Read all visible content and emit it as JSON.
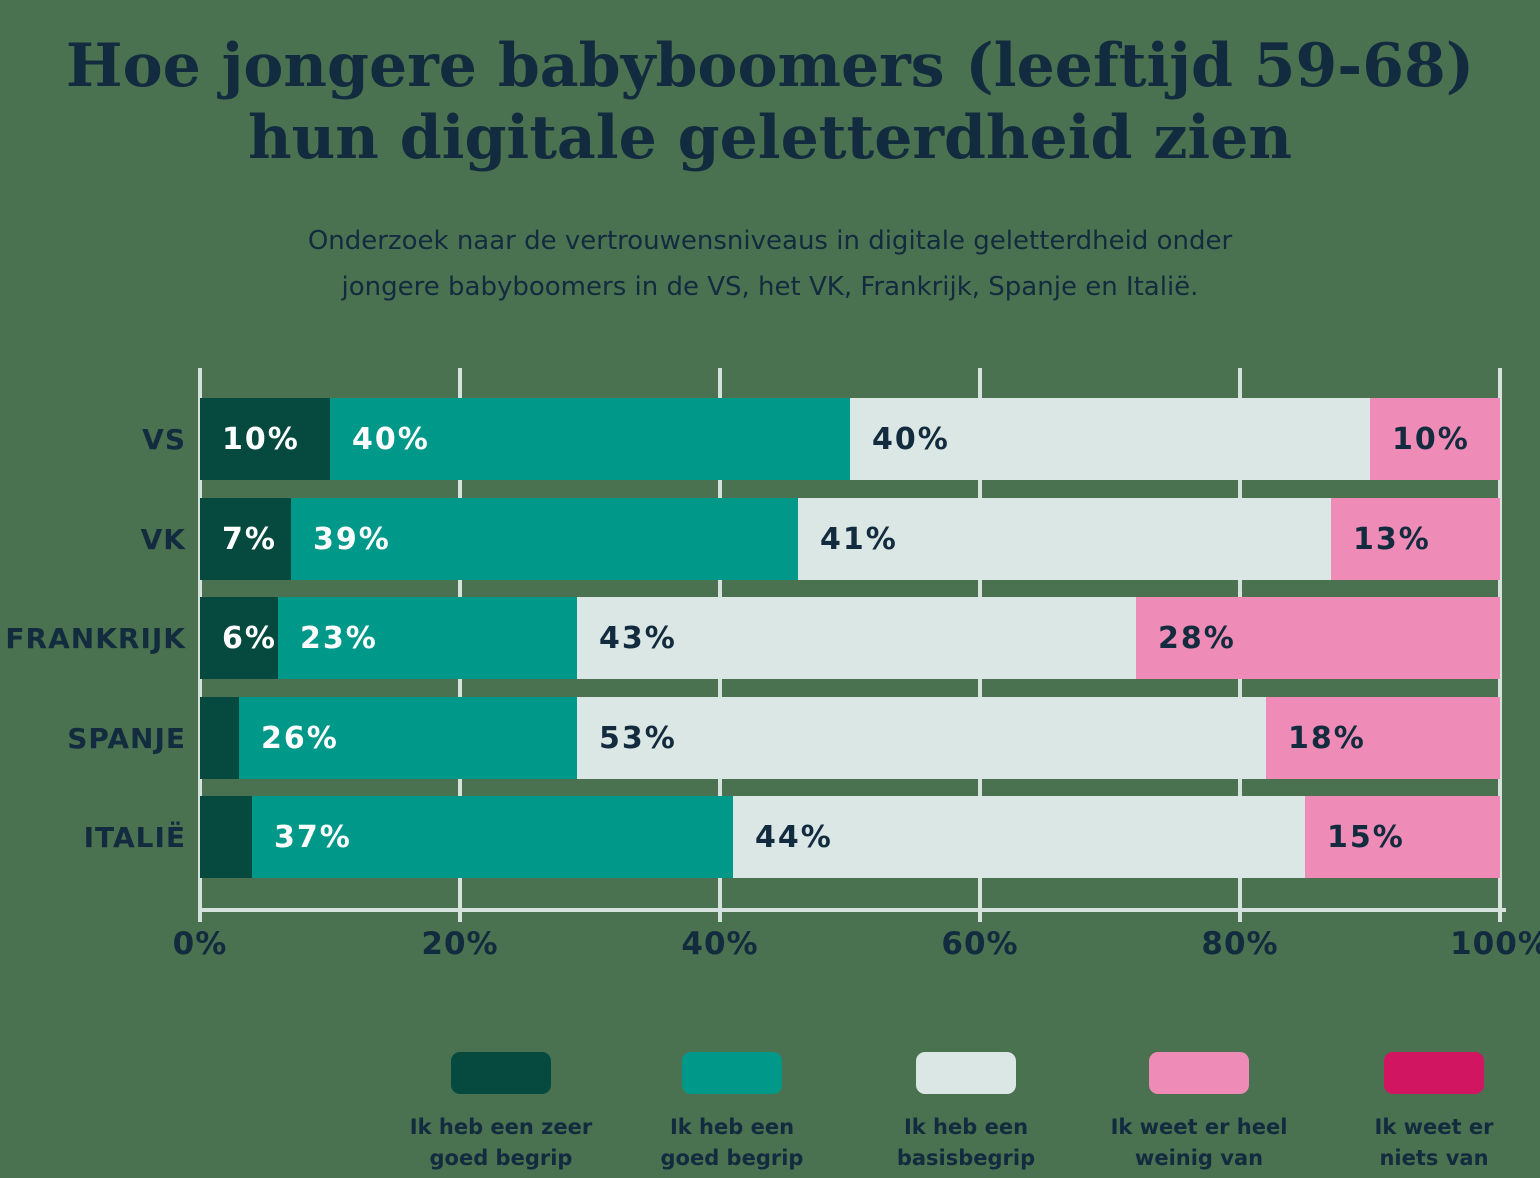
{
  "page": {
    "background_color": "#4a7150",
    "text_color": "#132b3e",
    "gridline_color": "#d7e2df"
  },
  "header": {
    "title_line1": "Hoe jongere babyboomers (leeftijd 59-68)",
    "title_line2": "hun digitale geletterdheid zien",
    "subtitle_line1": "Onderzoek naar de vertrouwensniveaus in digitale geletterdheid onder",
    "subtitle_line2": "jongere babyboomers in de VS, het VK, Frankrijk, Spanje en Italië."
  },
  "chart_data": {
    "type": "bar",
    "orientation": "horizontal",
    "stacked": true,
    "grid": true,
    "xlim": [
      0,
      100
    ],
    "x_ticks": [
      {
        "label": "0%",
        "value": 0
      },
      {
        "label": "20%",
        "value": 20
      },
      {
        "label": "40%",
        "value": 40
      },
      {
        "label": "60%",
        "value": 60
      },
      {
        "label": "80%",
        "value": 80
      },
      {
        "label": "100%",
        "value": 100
      }
    ],
    "categories": [
      "VS",
      "VK",
      "FRANKRIJK",
      "SPANJE",
      "ITALIË"
    ],
    "series": [
      {
        "name": "Ik heb een zeer goed begrip",
        "color": "#05493f",
        "label_style": "light",
        "values": [
          10,
          7,
          6,
          3,
          4
        ]
      },
      {
        "name": "Ik heb een goed begrip",
        "color": "#009889",
        "label_style": "light",
        "values": [
          40,
          39,
          23,
          26,
          37
        ]
      },
      {
        "name": "Ik heb een basisbegrip",
        "color": "#dbe7e4",
        "label_style": "dark",
        "values": [
          40,
          41,
          43,
          53,
          44
        ]
      },
      {
        "name": "Ik weet er heel weinig van",
        "color": "#ee8cb7",
        "label_style": "dark",
        "values": [
          10,
          13,
          28,
          18,
          15
        ]
      },
      {
        "name": "Ik weet er niets van",
        "color": "#d11560",
        "label_style": "light",
        "values": [
          0,
          0,
          0,
          0,
          0
        ]
      }
    ],
    "value_suffix": "%",
    "min_label_value": 5,
    "label_colors": {
      "light": "#ffffff",
      "dark": "#132b3e"
    },
    "legend_position": "bottom"
  },
  "legend": {
    "items": [
      {
        "color": "#05493f",
        "line1": "Ik heb een zeer",
        "line2": "goed begrip"
      },
      {
        "color": "#009889",
        "line1": "Ik heb een",
        "line2": "goed begrip"
      },
      {
        "color": "#dbe7e4",
        "line1": "Ik heb een",
        "line2": "basisbegrip"
      },
      {
        "color": "#ee8cb7",
        "line1": "Ik weet er heel",
        "line2": "weinig van"
      },
      {
        "color": "#d11560",
        "line1": "Ik weet er",
        "line2": "niets van"
      }
    ]
  }
}
